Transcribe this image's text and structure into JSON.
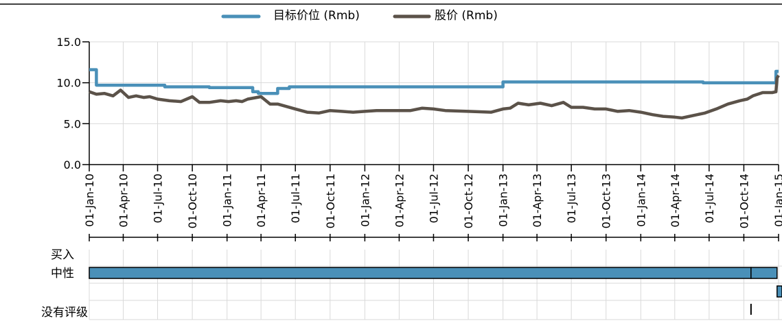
{
  "chart_data": {
    "type": "line",
    "title": "",
    "xlabel": "",
    "ylabel": "",
    "legend_position": "top",
    "ylim": [
      0,
      15
    ],
    "y_ticks": [
      "0.0",
      "5.0",
      "10.0",
      "15.0"
    ],
    "x_range": [
      "2010-01-01",
      "2015-01-01"
    ],
    "x_ticks": [
      {
        "date": "2010-01-01",
        "label": "01-Jan-10"
      },
      {
        "date": "2010-04-01",
        "label": "01-Apr-10"
      },
      {
        "date": "2010-07-01",
        "label": "01-Jul-10"
      },
      {
        "date": "2010-10-01",
        "label": "01-Oct-10"
      },
      {
        "date": "2011-01-01",
        "label": "01-Jan-11"
      },
      {
        "date": "2011-04-01",
        "label": "01-Apr-11"
      },
      {
        "date": "2011-07-01",
        "label": "01-Jul-11"
      },
      {
        "date": "2011-10-01",
        "label": "01-Oct-11"
      },
      {
        "date": "2012-01-01",
        "label": "01-Jan-12"
      },
      {
        "date": "2012-04-01",
        "label": "01-Apr-12"
      },
      {
        "date": "2012-07-01",
        "label": "01-Jul-12"
      },
      {
        "date": "2012-10-01",
        "label": "01-Oct-12"
      },
      {
        "date": "2013-01-01",
        "label": "01-Jan-13"
      },
      {
        "date": "2013-04-01",
        "label": "01-Apr-13"
      },
      {
        "date": "2013-07-01",
        "label": "01-Jul-13"
      },
      {
        "date": "2013-10-01",
        "label": "01-Oct-13"
      },
      {
        "date": "2014-01-01",
        "label": "01-Jan-14"
      },
      {
        "date": "2014-04-01",
        "label": "01-Apr-14"
      },
      {
        "date": "2014-07-01",
        "label": "01-Jul-14"
      },
      {
        "date": "2014-10-01",
        "label": "01-Oct-14"
      },
      {
        "date": "2015-01-01",
        "label": "01-Jan-15"
      }
    ],
    "grid": true,
    "series": [
      {
        "name": "目标价位 (Rmb)",
        "color": "#4a90b8",
        "step": true,
        "points": [
          [
            "2010-01-01",
            11.6
          ],
          [
            "2010-01-20",
            11.6
          ],
          [
            "2010-01-20",
            9.7
          ],
          [
            "2010-07-20",
            9.7
          ],
          [
            "2010-07-20",
            9.5
          ],
          [
            "2010-11-15",
            9.5
          ],
          [
            "2010-11-15",
            9.4
          ],
          [
            "2011-03-10",
            9.4
          ],
          [
            "2011-03-10",
            8.9
          ],
          [
            "2011-03-25",
            8.9
          ],
          [
            "2011-03-25",
            8.7
          ],
          [
            "2011-05-15",
            8.7
          ],
          [
            "2011-05-15",
            9.3
          ],
          [
            "2011-06-15",
            9.3
          ],
          [
            "2011-06-15",
            9.5
          ],
          [
            "2013-01-01",
            9.5
          ],
          [
            "2013-01-01",
            10.1
          ],
          [
            "2014-06-15",
            10.1
          ],
          [
            "2014-06-15",
            10.0
          ],
          [
            "2014-12-25",
            10.0
          ],
          [
            "2014-12-25",
            11.4
          ],
          [
            "2015-01-01",
            11.4
          ]
        ]
      },
      {
        "name": "股价 (Rmb)",
        "color": "#5b5249",
        "step": false,
        "points": [
          [
            "2010-01-01",
            8.9
          ],
          [
            "2010-01-20",
            8.6
          ],
          [
            "2010-02-10",
            8.7
          ],
          [
            "2010-03-05",
            8.4
          ],
          [
            "2010-03-25",
            9.1
          ],
          [
            "2010-04-15",
            8.2
          ],
          [
            "2010-05-05",
            8.4
          ],
          [
            "2010-05-25",
            8.2
          ],
          [
            "2010-06-10",
            8.3
          ],
          [
            "2010-07-01",
            8.0
          ],
          [
            "2010-08-01",
            7.8
          ],
          [
            "2010-09-01",
            7.7
          ],
          [
            "2010-10-01",
            8.3
          ],
          [
            "2010-10-20",
            7.6
          ],
          [
            "2010-11-15",
            7.6
          ],
          [
            "2010-12-15",
            7.8
          ],
          [
            "2011-01-05",
            7.7
          ],
          [
            "2011-01-25",
            7.8
          ],
          [
            "2011-02-10",
            7.7
          ],
          [
            "2011-02-25",
            8.0
          ],
          [
            "2011-04-01",
            8.3
          ],
          [
            "2011-04-25",
            7.4
          ],
          [
            "2011-05-15",
            7.4
          ],
          [
            "2011-07-01",
            6.8
          ],
          [
            "2011-08-01",
            6.4
          ],
          [
            "2011-09-01",
            6.3
          ],
          [
            "2011-10-01",
            6.6
          ],
          [
            "2011-11-01",
            6.5
          ],
          [
            "2011-12-01",
            6.4
          ],
          [
            "2012-01-01",
            6.5
          ],
          [
            "2012-02-01",
            6.6
          ],
          [
            "2012-04-01",
            6.6
          ],
          [
            "2012-05-01",
            6.6
          ],
          [
            "2012-06-01",
            6.9
          ],
          [
            "2012-07-01",
            6.8
          ],
          [
            "2012-08-01",
            6.6
          ],
          [
            "2012-10-01",
            6.5
          ],
          [
            "2012-12-01",
            6.4
          ],
          [
            "2013-01-01",
            6.8
          ],
          [
            "2013-01-20",
            6.9
          ],
          [
            "2013-02-10",
            7.5
          ],
          [
            "2013-03-10",
            7.3
          ],
          [
            "2013-04-10",
            7.5
          ],
          [
            "2013-05-10",
            7.2
          ],
          [
            "2013-06-10",
            7.6
          ],
          [
            "2013-07-01",
            7.0
          ],
          [
            "2013-08-01",
            7.0
          ],
          [
            "2013-09-01",
            6.8
          ],
          [
            "2013-10-01",
            6.8
          ],
          [
            "2013-11-01",
            6.5
          ],
          [
            "2013-12-01",
            6.6
          ],
          [
            "2014-01-01",
            6.4
          ],
          [
            "2014-02-01",
            6.1
          ],
          [
            "2014-03-01",
            5.9
          ],
          [
            "2014-04-01",
            5.8
          ],
          [
            "2014-04-20",
            5.7
          ],
          [
            "2014-05-20",
            6.0
          ],
          [
            "2014-06-20",
            6.3
          ],
          [
            "2014-07-20",
            6.8
          ],
          [
            "2014-08-20",
            7.4
          ],
          [
            "2014-09-20",
            7.8
          ],
          [
            "2014-10-10",
            8.0
          ],
          [
            "2014-10-25",
            8.4
          ],
          [
            "2014-11-20",
            8.8
          ],
          [
            "2014-12-15",
            8.8
          ],
          [
            "2014-12-25",
            8.9
          ],
          [
            "2014-12-28",
            10.6
          ],
          [
            "2015-01-01",
            10.9
          ]
        ]
      }
    ],
    "rating_rows": [
      {
        "label": "买入",
        "segments": [
          [
            "2010-01-01",
            "2014-10-20"
          ],
          [
            "2014-10-20",
            "2014-12-28"
          ]
        ]
      },
      {
        "label": "中性",
        "segments": [
          [
            "2014-12-28",
            "2015-01-10"
          ]
        ]
      },
      {
        "label": "没有评级",
        "markers": [
          "2014-10-20"
        ]
      }
    ],
    "rating_color": "#4a90b8"
  }
}
